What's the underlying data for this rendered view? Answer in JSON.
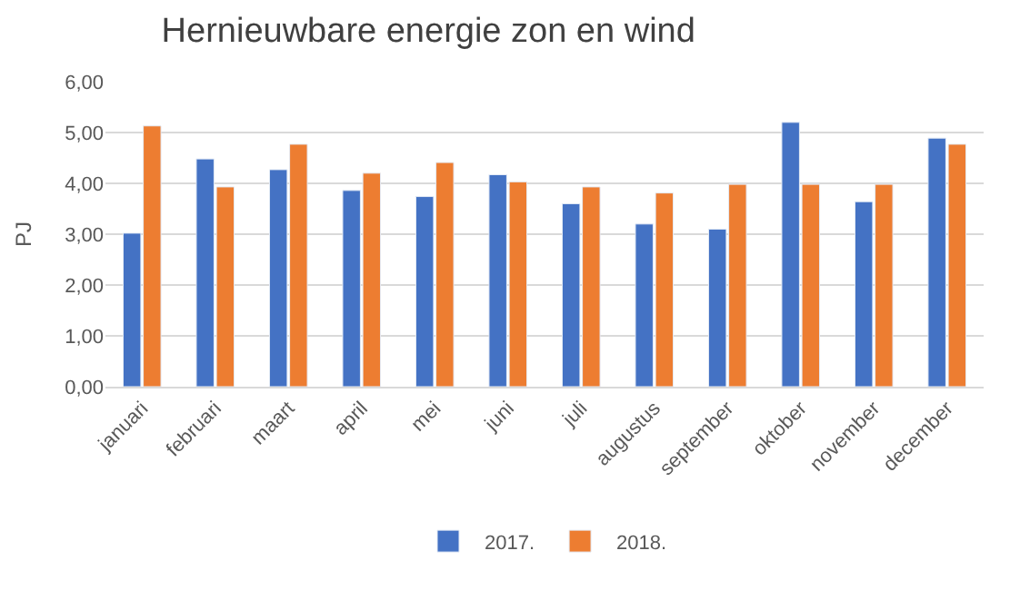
{
  "chart_data": {
    "type": "bar",
    "title": "Hernieuwbare energie zon en wind",
    "ylabel": "PJ",
    "categories": [
      "januari",
      "februari",
      "maart",
      "april",
      "mei",
      "juni",
      "juli",
      "augustus",
      "september",
      "oktober",
      "november",
      "december"
    ],
    "series": [
      {
        "name": "2017.",
        "color": "#4472c4",
        "values": [
          3.02,
          4.48,
          4.27,
          3.86,
          3.74,
          4.17,
          3.6,
          3.2,
          3.1,
          5.2,
          3.64,
          4.89
        ]
      },
      {
        "name": "2018.",
        "color": "#ed7d31",
        "values": [
          5.13,
          3.93,
          4.77,
          4.2,
          4.41,
          4.03,
          3.93,
          3.81,
          3.98,
          3.98,
          3.98,
          4.77
        ]
      }
    ],
    "ylim": [
      0,
      6
    ],
    "yticks": [
      {
        "value": 0,
        "label": "0,00"
      },
      {
        "value": 1,
        "label": "1,00"
      },
      {
        "value": 2,
        "label": "2,00"
      },
      {
        "value": 3,
        "label": "3,00"
      },
      {
        "value": 4,
        "label": "4,00"
      },
      {
        "value": 5,
        "label": "5,00"
      },
      {
        "value": 6,
        "label": "6,00"
      }
    ],
    "grid": "y",
    "legend": "bottom"
  }
}
